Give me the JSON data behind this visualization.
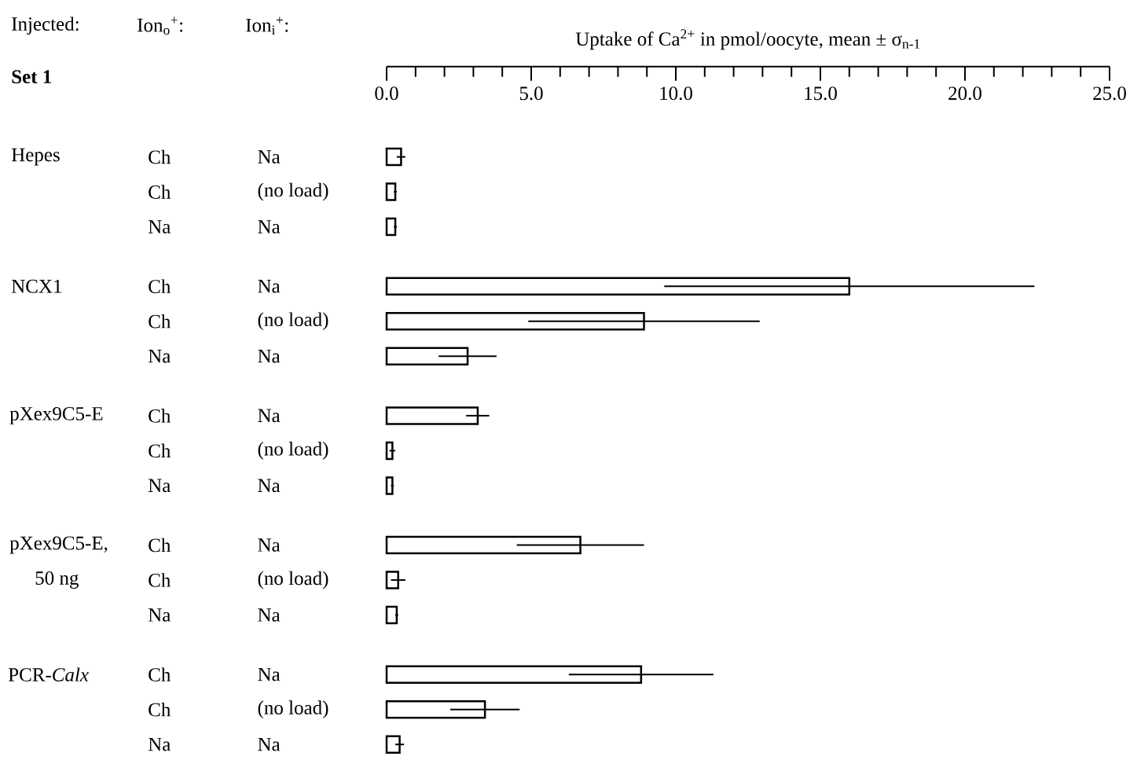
{
  "chart_data": {
    "type": "bar",
    "orientation": "horizontal",
    "xlabel": "Uptake of Ca$^{2+}$ in pmol/oocyte, mean ± σ$_{n-1}$",
    "categories": [
      "Na",
      "(no load)",
      "Na",
      "Na",
      "(no load)",
      "Na",
      "Na",
      "(no load)",
      "Na",
      "Na",
      "(no load)",
      "Na",
      "Na",
      "(no load)",
      "Na"
    ],
    "values": [
      0.5,
      0.3,
      0.3,
      16.0,
      8.9,
      2.8,
      3.15,
      0.2,
      0.2,
      6.7,
      0.4,
      0.35,
      8.8,
      3.4,
      0.45
    ],
    "errors": [
      0.15,
      0.05,
      0.05,
      6.4,
      4.0,
      1.0,
      0.4,
      0.1,
      0.05,
      2.2,
      0.25,
      0.05,
      2.5,
      1.2,
      0.15
    ],
    "color": "#ffffff",
    "xlim": [
      0,
      25
    ],
    "xticks": [
      {
        "value": 0,
        "label": "0.0"
      },
      {
        "value": 5,
        "label": "5.0"
      },
      {
        "value": 10,
        "label": "10.0"
      },
      {
        "value": 15,
        "label": "15.0"
      },
      {
        "value": 20,
        "label": "20.0"
      },
      {
        "value": 25,
        "label": "25.0"
      }
    ],
    "annotations": [
      "Injected:",
      "Ion$_{o}$$^{+}$:",
      "Ion$_{i}$$^{+}$:",
      "Set  1",
      "Hepes",
      "NCX1",
      "pXex9C5-E",
      "pXex9C5-E,",
      "50 ng",
      "PCR-*Calx*",
      "Ch",
      "Ch",
      "Na",
      "Ch",
      "Ch",
      "Na",
      "Ch",
      "Ch",
      "Na",
      "Ch",
      "Ch",
      "Na",
      "Ch",
      "Ch",
      "Na"
    ]
  }
}
